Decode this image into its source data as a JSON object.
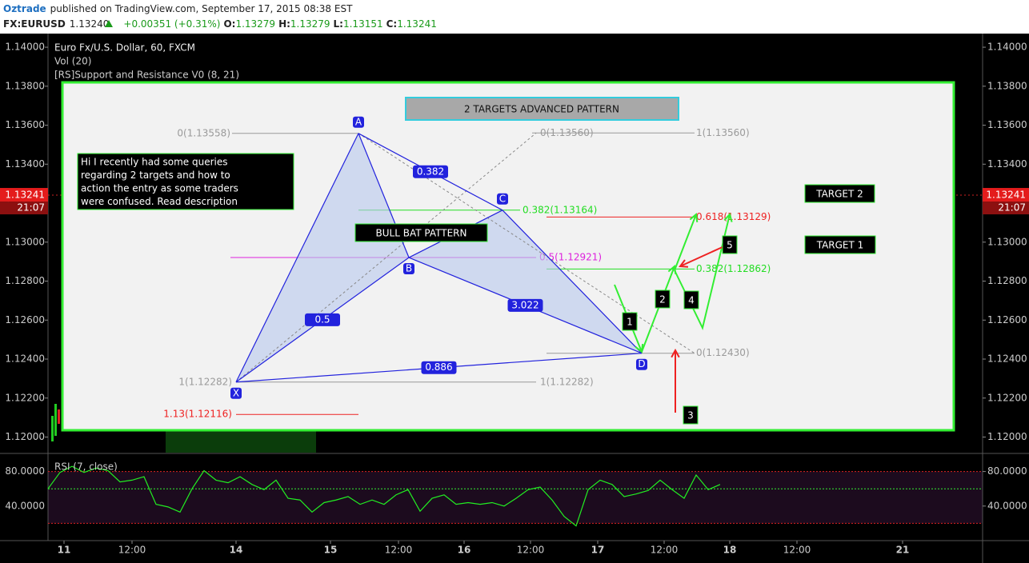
{
  "header": {
    "author": "Oztrade",
    "published": "published on TradingView.com, September 17, 2015 08:38 EST",
    "symbol": "FX:EURUSD",
    "last": "1.13240",
    "change": "+0.00351 (+0.31%)",
    "ohlc": [
      {
        "key": "O:",
        "value": "1.13279"
      },
      {
        "key": "H:",
        "value": "1.13279"
      },
      {
        "key": "L:",
        "value": "1.13151"
      },
      {
        "key": "C:",
        "value": "1.13241"
      }
    ]
  },
  "time_axis": [
    "11",
    "12:00",
    "14",
    "15",
    "12:00",
    "16",
    "12:00",
    "17",
    "12:00",
    "18",
    "12:00",
    "21"
  ],
  "chart_data": [
    {
      "type": "harmonic-pattern",
      "title": "Euro Fx/U.S. Dollar, 60, FXCM",
      "indicators": [
        "Vol (20)",
        "[RS]Support and Resistance V0 (8, 21)"
      ],
      "ylim": [
        1.1192,
        1.1407
      ],
      "yticks": [
        {
          "value": 1.12,
          "label": "1.12000"
        },
        {
          "value": 1.122,
          "label": "1.12200"
        },
        {
          "value": 1.124,
          "label": "1.12400"
        },
        {
          "value": 1.126,
          "label": "1.12600"
        },
        {
          "value": 1.128,
          "label": "1.12800"
        },
        {
          "value": 1.13,
          "label": "1.13000"
        },
        {
          "value": 1.132,
          "label": "1.13200"
        },
        {
          "value": 1.134,
          "label": "1.13400"
        },
        {
          "value": 1.136,
          "label": "1.13600"
        },
        {
          "value": 1.138,
          "label": "1.13800"
        },
        {
          "value": 1.14,
          "label": "1.14000"
        }
      ],
      "last_price": {
        "value": 1.13241,
        "label": "1.13241"
      },
      "last_time": "21:07",
      "points": [
        {
          "name": "X",
          "value": 1.12282
        },
        {
          "name": "A",
          "value": 1.13558
        },
        {
          "name": "B",
          "value": 1.12921
        },
        {
          "name": "C",
          "value": 1.13164
        },
        {
          "name": "D",
          "value": 1.1243
        }
      ],
      "ratios": [
        0.382,
        0.5,
        3.022,
        0.886
      ],
      "levels": [
        {
          "label": "0(1.13558)",
          "value": 1.13558,
          "color": "#9a9a9a"
        },
        {
          "label": "0(1.13560)",
          "value": 1.1356,
          "color": "#9a9a9a"
        },
        {
          "label": "1(1.13560)",
          "value": 1.1356,
          "color": "#9a9a9a"
        },
        {
          "label": "0.382(1.13164)",
          "value": 1.13164,
          "color": "#22dd22"
        },
        {
          "label": "0.618(1.13129)",
          "value": 1.13129,
          "color": "#ee2222"
        },
        {
          "label": "0.5(1.12921)",
          "value": 1.12921,
          "color": "#dd22dd"
        },
        {
          "label": "0.382(1.12862)",
          "value": 1.12862,
          "color": "#22dd22"
        },
        {
          "label": "0(1.12430)",
          "value": 1.1243,
          "color": "#9a9a9a"
        },
        {
          "label": "1(1.12282)",
          "value": 1.12282,
          "color": "#9a9a9a"
        },
        {
          "label": "1(1.12282)",
          "value": 1.12282,
          "color": "#9a9a9a"
        },
        {
          "label": "1.13(1.12116)",
          "value": 1.12116,
          "color": "#ee2222"
        }
      ],
      "annotations": {
        "title": "2 TARGETS ADVANCED PATTERN",
        "note": [
          "Hi I recently had some queries",
          "regarding 2 targets and how to",
          "action the entry as some traders",
          "were confused. Read description"
        ],
        "pattern": "BULL BAT PATTERN",
        "target_2": "TARGET 2",
        "target_1": "TARGET 1",
        "steps": [
          "1",
          "2",
          "3",
          "4",
          "5"
        ]
      }
    },
    {
      "type": "line",
      "title": "RSI (7, close)",
      "ylim": [
        0,
        100
      ],
      "yticks": [
        {
          "value": 80,
          "label": "80.0000"
        },
        {
          "value": 40,
          "label": "40.0000"
        }
      ],
      "hlines": [
        80,
        60,
        20
      ],
      "color": "#22ee22",
      "values": [
        60,
        79,
        86,
        79,
        84,
        81,
        68,
        70,
        74,
        42,
        39,
        33,
        60,
        81,
        70,
        67,
        74,
        65,
        59,
        70,
        49,
        47,
        33,
        44,
        47,
        51,
        42,
        47,
        42,
        53,
        59,
        34,
        49,
        53,
        42,
        44,
        42,
        44,
        40,
        49,
        59,
        62,
        47,
        28,
        17,
        59,
        70,
        65,
        51,
        54,
        58,
        70,
        59,
        49,
        76,
        59,
        65
      ]
    }
  ]
}
